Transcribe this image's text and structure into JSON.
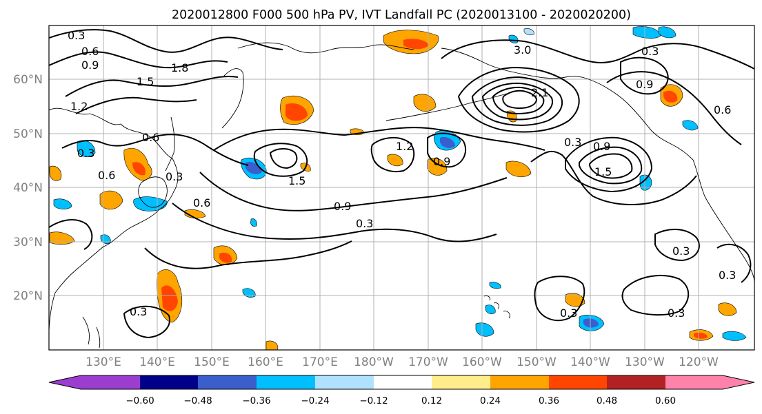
{
  "title": "2020012800 F000 500 hPa PV, IVT Landfall PC (2020013100 - 2020020200)",
  "lat_labels": [
    "60°N",
    "50°N",
    "40°N",
    "30°N",
    "20°N"
  ],
  "lon_labels": [
    "130°E",
    "140°E",
    "150°E",
    "160°E",
    "170°E",
    "180°W",
    "170°W",
    "160°W",
    "150°W",
    "140°W",
    "130°W",
    "120°W"
  ],
  "colorbar": {
    "tick_labels": [
      "−0.60",
      "−0.48",
      "−0.36",
      "−0.24",
      "−0.12",
      "0.12",
      "0.24",
      "0.36",
      "0.48",
      "0.60"
    ],
    "colors": [
      "#9b3dcf",
      "#00008b",
      "#3a5fcd",
      "#00bfff",
      "#b0e2ff",
      "#ffffff",
      "#ffec8b",
      "#ffa500",
      "#ff4500",
      "#b22222",
      "#ff82ab"
    ]
  },
  "contour_labels": [
    "0.3",
    "0.6",
    "0.9",
    "1.2",
    "1.5",
    "1.8",
    "3.0",
    "2.1",
    "0.6",
    "0.3",
    "0.9",
    "1.2",
    "1.5",
    "0.3",
    "0.9",
    "1.5",
    "0.6",
    "0.9",
    "0.3",
    "0.6",
    "0.3",
    "0.3",
    "0.3",
    "0.3",
    "0.3",
    "0.3",
    "0.9",
    "0.6",
    "0.3"
  ]
}
